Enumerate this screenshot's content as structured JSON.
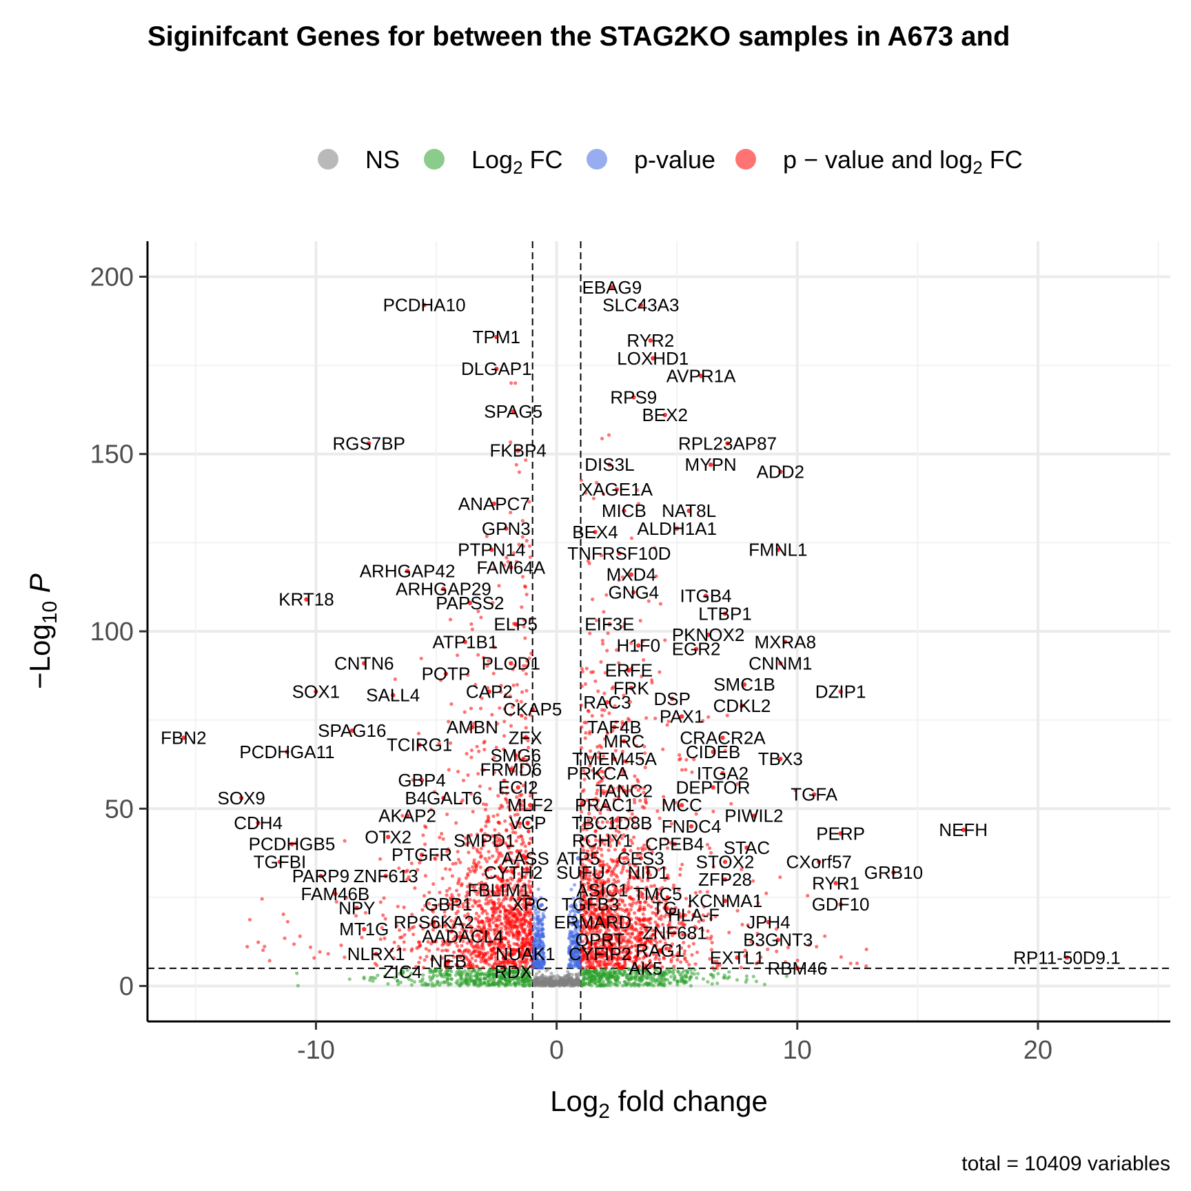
{
  "chart_data": {
    "type": "scatter",
    "title": "Siginifcant Genes for between the STAG2KO samples in A673 and",
    "xlabel": {
      "base": "Log",
      "sub": "2",
      "rest": " fold change"
    },
    "ylabel": {
      "pre": "−Log",
      "sub": "10",
      "rest": " P"
    },
    "caption": "total = 10409 variables",
    "xlim": [
      -17,
      25.5
    ],
    "ylim": [
      -10,
      210
    ],
    "x_ticks": [
      -10,
      0,
      10,
      20
    ],
    "y_ticks": [
      0,
      50,
      100,
      150,
      200
    ],
    "x_tick_labels": [
      "-10",
      "0",
      "10",
      "20"
    ],
    "y_tick_labels": [
      "0",
      "50",
      "100",
      "150",
      "200"
    ],
    "fc_cutoff": 1,
    "p_cutoff_neglog10": 5,
    "grid": true,
    "legend_position": "top",
    "legend": [
      {
        "key": "NS",
        "parts": [
          {
            "t": "NS"
          }
        ],
        "color": "#808080"
      },
      {
        "key": "log2fc",
        "parts": [
          {
            "t": "Log"
          },
          {
            "t": "2",
            "sub": true
          },
          {
            "t": " FC"
          }
        ],
        "color": "#2ca02c"
      },
      {
        "key": "pvalue",
        "parts": [
          {
            "t": "p-value"
          }
        ],
        "color": "#4169e1"
      },
      {
        "key": "both",
        "parts": [
          {
            "t": "p − value and log"
          },
          {
            "t": "2",
            "sub": true
          },
          {
            "t": " FC"
          }
        ],
        "color": "#ff0000"
      }
    ],
    "labeled_genes": [
      {
        "gene": "EBAG9",
        "x": 2.3,
        "y": 197
      },
      {
        "gene": "SLC43A3",
        "x": 3.5,
        "y": 192
      },
      {
        "gene": "PCDHA10",
        "x": -5.5,
        "y": 192
      },
      {
        "gene": "TPM1",
        "x": -2.5,
        "y": 183
      },
      {
        "gene": "RYR2",
        "x": 3.9,
        "y": 182
      },
      {
        "gene": "LOXHD1",
        "x": 4.0,
        "y": 177
      },
      {
        "gene": "DLGAP1",
        "x": -2.5,
        "y": 174
      },
      {
        "gene": "AVPR1A",
        "x": 6.0,
        "y": 172
      },
      {
        "gene": "RPS9",
        "x": 3.2,
        "y": 166
      },
      {
        "gene": "SPAG5",
        "x": -1.8,
        "y": 162
      },
      {
        "gene": "BEX2",
        "x": 4.5,
        "y": 161
      },
      {
        "gene": "RGS7BP",
        "x": -7.8,
        "y": 153
      },
      {
        "gene": "RPL23AP87",
        "x": 7.1,
        "y": 153
      },
      {
        "gene": "FKBP4",
        "x": -1.6,
        "y": 151
      },
      {
        "gene": "DIS3L",
        "x": 2.2,
        "y": 147
      },
      {
        "gene": "MYPN",
        "x": 6.4,
        "y": 147
      },
      {
        "gene": "ADD2",
        "x": 9.3,
        "y": 145
      },
      {
        "gene": "XAGE1A",
        "x": 2.5,
        "y": 140
      },
      {
        "gene": "ANAPC7",
        "x": -2.6,
        "y": 136
      },
      {
        "gene": "MICB",
        "x": 2.8,
        "y": 134
      },
      {
        "gene": "NAT8L",
        "x": 5.5,
        "y": 134
      },
      {
        "gene": "GPN3",
        "x": -2.1,
        "y": 129
      },
      {
        "gene": "BEX4",
        "x": 1.6,
        "y": 128
      },
      {
        "gene": "ALDH1A1",
        "x": 5.0,
        "y": 129
      },
      {
        "gene": "FMNL1",
        "x": 9.2,
        "y": 123
      },
      {
        "gene": "PTPN14",
        "x": -2.7,
        "y": 123
      },
      {
        "gene": "TNFRSF10D",
        "x": 2.6,
        "y": 122
      },
      {
        "gene": "FAM64A",
        "x": -1.9,
        "y": 118
      },
      {
        "gene": "ARHGAP42",
        "x": -6.2,
        "y": 117
      },
      {
        "gene": "MXD4",
        "x": 3.1,
        "y": 116
      },
      {
        "gene": "ARHGAP29",
        "x": -4.7,
        "y": 112
      },
      {
        "gene": "GNG4",
        "x": 3.2,
        "y": 111
      },
      {
        "gene": "ITGB4",
        "x": 6.2,
        "y": 110
      },
      {
        "gene": "KRT18",
        "x": -10.4,
        "y": 109
      },
      {
        "gene": "PAPSS2",
        "x": -3.6,
        "y": 108
      },
      {
        "gene": "LTBP1",
        "x": 7.0,
        "y": 105
      },
      {
        "gene": "ELP5",
        "x": -1.7,
        "y": 102
      },
      {
        "gene": "EIF3E",
        "x": 2.2,
        "y": 102
      },
      {
        "gene": "PKNOX2",
        "x": 6.3,
        "y": 99
      },
      {
        "gene": "ATP1B1",
        "x": -3.8,
        "y": 97
      },
      {
        "gene": "MXRA8",
        "x": 9.5,
        "y": 97
      },
      {
        "gene": "H1F0",
        "x": 3.4,
        "y": 96
      },
      {
        "gene": "EGR2",
        "x": 5.8,
        "y": 95
      },
      {
        "gene": "CNTN6",
        "x": -8.0,
        "y": 91
      },
      {
        "gene": "PLOD1",
        "x": -1.9,
        "y": 91
      },
      {
        "gene": "CNNM1",
        "x": 9.3,
        "y": 91
      },
      {
        "gene": "ERFE",
        "x": 3.0,
        "y": 89
      },
      {
        "gene": "POTP",
        "x": -4.6,
        "y": 88
      },
      {
        "gene": "SMC1B",
        "x": 7.8,
        "y": 85
      },
      {
        "gene": "DZIP1",
        "x": 11.8,
        "y": 83
      },
      {
        "gene": "FRK",
        "x": 3.1,
        "y": 84
      },
      {
        "gene": "SOX1",
        "x": -10.0,
        "y": 83
      },
      {
        "gene": "CAP2",
        "x": -2.8,
        "y": 83
      },
      {
        "gene": "SALL4",
        "x": -6.8,
        "y": 82
      },
      {
        "gene": "DSP",
        "x": 4.8,
        "y": 81
      },
      {
        "gene": "RAC3",
        "x": 2.1,
        "y": 80
      },
      {
        "gene": "CDKL2",
        "x": 7.7,
        "y": 79
      },
      {
        "gene": "CKAP5",
        "x": -1.0,
        "y": 78
      },
      {
        "gene": "PAX1",
        "x": 5.2,
        "y": 76
      },
      {
        "gene": "SPAG16",
        "x": -8.5,
        "y": 72
      },
      {
        "gene": "AMBN",
        "x": -3.5,
        "y": 73
      },
      {
        "gene": "TAF4B",
        "x": 2.4,
        "y": 73
      },
      {
        "gene": "FBN2",
        "x": -15.5,
        "y": 70
      },
      {
        "gene": "ZFX",
        "x": -1.3,
        "y": 70
      },
      {
        "gene": "CRACR2A",
        "x": 6.9,
        "y": 70
      },
      {
        "gene": "MRC",
        "x": 2.8,
        "y": 69
      },
      {
        "gene": "TCIRG1",
        "x": -5.7,
        "y": 68
      },
      {
        "gene": "PCDHGA11",
        "x": -11.2,
        "y": 66
      },
      {
        "gene": "CIDEB",
        "x": 6.5,
        "y": 66
      },
      {
        "gene": "SMG6",
        "x": -1.7,
        "y": 65
      },
      {
        "gene": "TBX3",
        "x": 9.3,
        "y": 64
      },
      {
        "gene": "TMEM45A",
        "x": 2.4,
        "y": 64
      },
      {
        "gene": "FRMD6",
        "x": -1.9,
        "y": 61
      },
      {
        "gene": "ITGA2",
        "x": 6.9,
        "y": 60
      },
      {
        "gene": "PRKCA",
        "x": 1.7,
        "y": 60
      },
      {
        "gene": "GBP4",
        "x": -5.6,
        "y": 58
      },
      {
        "gene": "ECI2",
        "x": -1.6,
        "y": 56
      },
      {
        "gene": "DEPTOR",
        "x": 6.5,
        "y": 56
      },
      {
        "gene": "TANC2",
        "x": 2.8,
        "y": 55
      },
      {
        "gene": "TGFA",
        "x": 10.7,
        "y": 54
      },
      {
        "gene": "SOX9",
        "x": -13.1,
        "y": 53
      },
      {
        "gene": "B4GALT6",
        "x": -4.7,
        "y": 53
      },
      {
        "gene": "MLF2",
        "x": -1.1,
        "y": 51
      },
      {
        "gene": "PRAC1",
        "x": 2.0,
        "y": 51
      },
      {
        "gene": "MCC",
        "x": 5.2,
        "y": 51
      },
      {
        "gene": "AKAP2",
        "x": -6.2,
        "y": 48
      },
      {
        "gene": "PIWIL2",
        "x": 8.2,
        "y": 48
      },
      {
        "gene": "CDH4",
        "x": -12.4,
        "y": 46
      },
      {
        "gene": "VCP",
        "x": -1.2,
        "y": 46
      },
      {
        "gene": "TBC1D8B",
        "x": 2.3,
        "y": 46
      },
      {
        "gene": "FNDC4",
        "x": 5.6,
        "y": 45
      },
      {
        "gene": "NEFH",
        "x": 16.9,
        "y": 44
      },
      {
        "gene": "PERP",
        "x": 11.8,
        "y": 43
      },
      {
        "gene": "OTX2",
        "x": -7.0,
        "y": 42
      },
      {
        "gene": "SMPD1",
        "x": -3.0,
        "y": 41
      },
      {
        "gene": "RCHY1",
        "x": 1.9,
        "y": 41
      },
      {
        "gene": "CPEB4",
        "x": 4.9,
        "y": 40
      },
      {
        "gene": "PCDHGB5",
        "x": -11.0,
        "y": 40
      },
      {
        "gene": "STAC",
        "x": 7.9,
        "y": 39
      },
      {
        "gene": "PTGFR",
        "x": -5.6,
        "y": 37
      },
      {
        "gene": "AASS",
        "x": -1.3,
        "y": 36
      },
      {
        "gene": "ATP5",
        "x": 0.9,
        "y": 36
      },
      {
        "gene": "CES3",
        "x": 3.5,
        "y": 36
      },
      {
        "gene": "STOX2",
        "x": 7.0,
        "y": 35
      },
      {
        "gene": "CXorf57",
        "x": 10.9,
        "y": 35
      },
      {
        "gene": "TGFBI",
        "x": -11.5,
        "y": 35
      },
      {
        "gene": "CYTH2",
        "x": -1.8,
        "y": 32
      },
      {
        "gene": "SUFU",
        "x": 1.0,
        "y": 32
      },
      {
        "gene": "NID1",
        "x": 3.8,
        "y": 32
      },
      {
        "gene": "GRB10",
        "x": 14.0,
        "y": 32
      },
      {
        "gene": "PARP9",
        "x": -9.8,
        "y": 31
      },
      {
        "gene": "ZNF613",
        "x": -7.1,
        "y": 31
      },
      {
        "gene": "ZFP28",
        "x": 7.0,
        "y": 30
      },
      {
        "gene": "RYR1",
        "x": 11.6,
        "y": 29
      },
      {
        "gene": "FBLIM1",
        "x": -2.4,
        "y": 27
      },
      {
        "gene": "ASIC1",
        "x": 1.9,
        "y": 27
      },
      {
        "gene": "TMC5",
        "x": 4.2,
        "y": 26
      },
      {
        "gene": "FAM46B",
        "x": -9.2,
        "y": 26
      },
      {
        "gene": "KCNMA1",
        "x": 7.0,
        "y": 24
      },
      {
        "gene": "GDF10",
        "x": 11.8,
        "y": 23
      },
      {
        "gene": "GBP1",
        "x": -4.5,
        "y": 23
      },
      {
        "gene": "XPC",
        "x": -1.1,
        "y": 23
      },
      {
        "gene": "TGFB3",
        "x": 1.4,
        "y": 23
      },
      {
        "gene": "TG",
        "x": 4.5,
        "y": 22
      },
      {
        "gene": "NPY",
        "x": -8.3,
        "y": 22
      },
      {
        "gene": "HLA-F",
        "x": 5.7,
        "y": 20
      },
      {
        "gene": "RPS6KA2",
        "x": -5.1,
        "y": 18
      },
      {
        "gene": "ERMARD",
        "x": 1.5,
        "y": 18
      },
      {
        "gene": "JPH4",
        "x": 8.8,
        "y": 18
      },
      {
        "gene": "MT1G",
        "x": -8.0,
        "y": 16
      },
      {
        "gene": "ZNF681",
        "x": 4.9,
        "y": 15
      },
      {
        "gene": "AADACL4",
        "x": -3.9,
        "y": 14
      },
      {
        "gene": "QPRT",
        "x": 1.8,
        "y": 13
      },
      {
        "gene": "B3GNT3",
        "x": 9.2,
        "y": 13
      },
      {
        "gene": "NLRX1",
        "x": -7.5,
        "y": 9
      },
      {
        "gene": "NUAK1",
        "x": -1.3,
        "y": 9
      },
      {
        "gene": "CYFIP2",
        "x": 1.8,
        "y": 9
      },
      {
        "gene": "RAG1",
        "x": 4.3,
        "y": 10
      },
      {
        "gene": "EXTL1",
        "x": 7.5,
        "y": 8
      },
      {
        "gene": "NEB",
        "x": -4.5,
        "y": 7
      },
      {
        "gene": "RP11-50D9.1",
        "x": 21.2,
        "y": 8
      },
      {
        "gene": "ZIC4",
        "x": -6.4,
        "y": 4
      },
      {
        "gene": "RDX",
        "x": -1.8,
        "y": 4
      },
      {
        "gene": "AK5",
        "x": 3.7,
        "y": 5
      },
      {
        "gene": "RBM46",
        "x": 10.0,
        "y": 5
      }
    ]
  }
}
